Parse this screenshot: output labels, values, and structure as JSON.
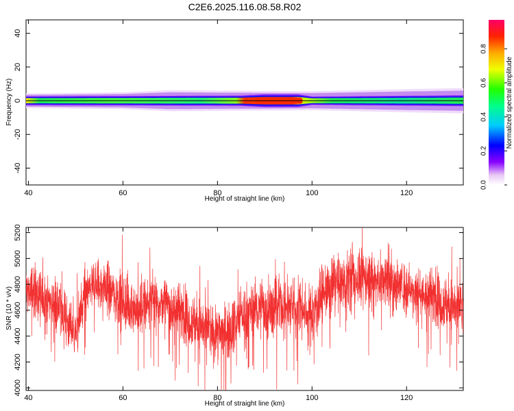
{
  "title": "C2E6.2025.116.08.58.R02",
  "colors": {
    "snr_line": "#f23030",
    "background": "#ffffff"
  },
  "chart_data": [
    {
      "type": "heatmap",
      "xlabel": "Height of straight line (km)",
      "ylabel": "Frequency (Hz)",
      "xlim": [
        39.5,
        132
      ],
      "ylim": [
        -50,
        48
      ],
      "xticks": [
        40,
        60,
        80,
        100,
        120
      ],
      "yticks": [
        -40,
        -20,
        0,
        20,
        40
      ],
      "colorbar": {
        "label": "Normalized spectral amplitude",
        "range": [
          0,
          0.97
        ],
        "ticks": [
          "0.0",
          "0.2",
          "0.4",
          "0.6",
          "0.8"
        ]
      },
      "ridge": {
        "center_frequency_hz": 0,
        "core_halfwidth_hz": [
          [
            40,
            1.8
          ],
          [
            60,
            1.9
          ],
          [
            85,
            2.1
          ],
          [
            90,
            2.6
          ],
          [
            97,
            2.6
          ],
          [
            100,
            1.7
          ],
          [
            120,
            2.0
          ],
          [
            132,
            2.2
          ]
        ],
        "halo_halfwidth_hz": [
          [
            40,
            3.5
          ],
          [
            60,
            4.0
          ],
          [
            70,
            5.0
          ],
          [
            100,
            4.5
          ],
          [
            120,
            5.5
          ],
          [
            132,
            6.0
          ]
        ],
        "peak_amplitude_segment_km": [
          88,
          98
        ]
      }
    },
    {
      "type": "line",
      "xlabel": "Height of straight line (km)",
      "ylabel": "SNR (10 * v/v)",
      "xlim": [
        39.5,
        132
      ],
      "ylim": [
        3980,
        5240
      ],
      "xticks": [
        40,
        60,
        80,
        100,
        120
      ],
      "yticks": [
        4000,
        4200,
        4400,
        4600,
        4800,
        5000,
        5200
      ],
      "trend": [
        [
          39.5,
          4760
        ],
        [
          42,
          4720
        ],
        [
          46,
          4650
        ],
        [
          48,
          4540
        ],
        [
          50,
          4420
        ],
        [
          52,
          4720
        ],
        [
          54,
          4800
        ],
        [
          57,
          4770
        ],
        [
          60,
          4660
        ],
        [
          63,
          4600
        ],
        [
          66,
          4680
        ],
        [
          70,
          4640
        ],
        [
          73,
          4560
        ],
        [
          76,
          4490
        ],
        [
          79,
          4420
        ],
        [
          82,
          4440
        ],
        [
          85,
          4560
        ],
        [
          88,
          4620
        ],
        [
          91,
          4600
        ],
        [
          94,
          4640
        ],
        [
          97,
          4620
        ],
        [
          100,
          4560
        ],
        [
          102,
          4720
        ],
        [
          105,
          4790
        ],
        [
          108,
          4840
        ],
        [
          111,
          4860
        ],
        [
          114,
          4830
        ],
        [
          118,
          4800
        ],
        [
          122,
          4740
        ],
        [
          126,
          4700
        ],
        [
          129,
          4640
        ],
        [
          132,
          4600
        ]
      ],
      "noise_amplitude": 140,
      "samples": 3000
    }
  ]
}
